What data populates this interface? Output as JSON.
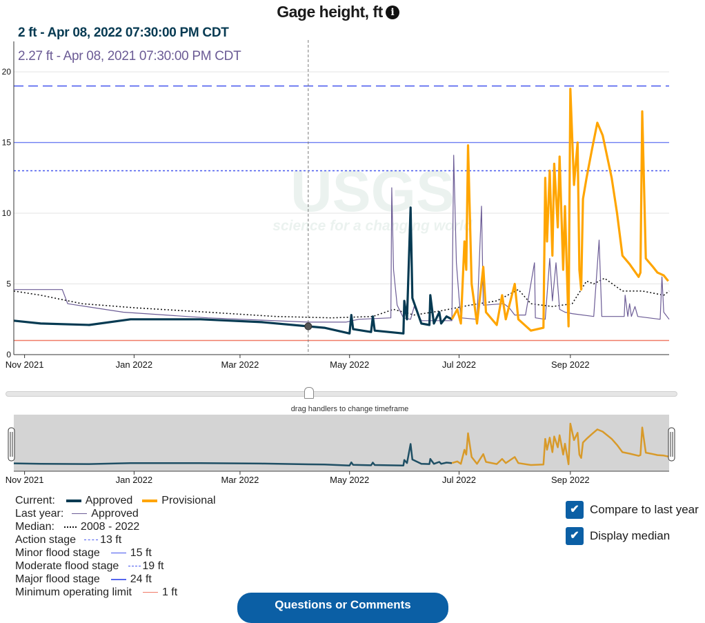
{
  "title": "Gage height, ft",
  "info_icon": "info-icon",
  "tooltip": {
    "current": "2 ft - Apr 08, 2022 07:30:00 PM CDT",
    "last_year": "2.27 ft - Apr 08, 2021 07:30:00 PM CDT"
  },
  "watermark": {
    "logo": "USGS",
    "tagline": "science for a changing world"
  },
  "brush_hint": "drag handlers to change timeframe",
  "legend": {
    "current_label": "Current:",
    "approved": "Approved",
    "provisional": "Provisional",
    "last_year_label": "Last year:",
    "last_year_approved": "Approved",
    "median_label": "Median:",
    "median_range": "2008 - 2022",
    "action_label": "Action stage",
    "action_value": "13 ft",
    "minor_label": "Minor flood stage",
    "minor_value": "15 ft",
    "moderate_label": "Moderate flood stage",
    "moderate_value": "19 ft",
    "major_label": "Major flood stage",
    "major_value": "24 ft",
    "minop_label": "Minimum operating limit",
    "minop_value": "1 ft"
  },
  "options": {
    "compare_last_year": {
      "label": "Compare to last year",
      "checked": true
    },
    "display_median": {
      "label": "Display median",
      "checked": true
    }
  },
  "button": {
    "label": "Questions or Comments"
  },
  "colors": {
    "approved": "#063a52",
    "provisional": "#ffa500",
    "provisional_brush": "#d89a2a",
    "last_year": "#6b5b95",
    "median": "#111111",
    "action": "#4455ee",
    "minor": "#6b7cf2",
    "moderate": "#4455ee",
    "minop": "#f07a66"
  },
  "chart_data": {
    "type": "line",
    "title": "Gage height, ft",
    "x_unit": "days since 2021-10-26",
    "xlim": [
      0,
      365
    ],
    "ylim": [
      0,
      22.15
    ],
    "yticks": [
      0,
      5,
      10,
      15,
      20
    ],
    "xticks": [
      {
        "day": 6,
        "label": "Nov 2021"
      },
      {
        "day": 67,
        "label": "Jan 2022"
      },
      {
        "day": 126,
        "label": "Mar 2022"
      },
      {
        "day": 187,
        "label": "May 2022"
      },
      {
        "day": 248,
        "label": "Jul 2022"
      },
      {
        "day": 310,
        "label": "Sep 2022"
      }
    ],
    "thresholds": [
      {
        "name": "action",
        "value": 13,
        "style": "dotted"
      },
      {
        "name": "minor",
        "value": 15,
        "style": "solid"
      },
      {
        "name": "moderate",
        "value": 19,
        "style": "dashed"
      },
      {
        "name": "minop",
        "value": 1,
        "style": "solid"
      }
    ],
    "hover": {
      "day": 164,
      "value": 2.0
    },
    "series": [
      {
        "name": "median",
        "points": [
          [
            0,
            4.5
          ],
          [
            15,
            4.2
          ],
          [
            38,
            3.6
          ],
          [
            69,
            3.3
          ],
          [
            108,
            3.0
          ],
          [
            146,
            2.7
          ],
          [
            177,
            2.6
          ],
          [
            200,
            2.7
          ],
          [
            211.5,
            3.2
          ],
          [
            223,
            2.8
          ],
          [
            238,
            3.1
          ],
          [
            254,
            3.5
          ],
          [
            269,
            3.8
          ],
          [
            281,
            4.6
          ],
          [
            288,
            3.6
          ],
          [
            300,
            3.4
          ],
          [
            311,
            3.6
          ],
          [
            319,
            5.2
          ],
          [
            323,
            5.0
          ],
          [
            329,
            5.4
          ],
          [
            339,
            4.5
          ],
          [
            350,
            4.5
          ],
          [
            362,
            4.2
          ],
          [
            365,
            4.5
          ]
        ]
      },
      {
        "name": "last_year",
        "points": [
          [
            0,
            4.6
          ],
          [
            27,
            4.6
          ],
          [
            30,
            3.6
          ],
          [
            61,
            3.0
          ],
          [
            108,
            2.6
          ],
          [
            164,
            2.3
          ],
          [
            185,
            2.3
          ],
          [
            192,
            2.5
          ],
          [
            210,
            2.6
          ],
          [
            210.5,
            11.8
          ],
          [
            211.5,
            6
          ],
          [
            213.5,
            3.5
          ],
          [
            217,
            2.6
          ],
          [
            221,
            2.5
          ],
          [
            223,
            3.4
          ],
          [
            227,
            2.4
          ],
          [
            234.5,
            2.4
          ],
          [
            244,
            2.4
          ],
          [
            245,
            14.1
          ],
          [
            246.5,
            6.5
          ],
          [
            248,
            4
          ],
          [
            249,
            2.6
          ],
          [
            258,
            2.5
          ],
          [
            260.5,
            10.5
          ],
          [
            261.5,
            3.5
          ],
          [
            273,
            3.6
          ],
          [
            276,
            3.3
          ],
          [
            279,
            2.8
          ],
          [
            285,
            2.8
          ],
          [
            290,
            6.5
          ],
          [
            290.5,
            2.6
          ],
          [
            296,
            2.5
          ],
          [
            298.5,
            6.8
          ],
          [
            300,
            3.8
          ],
          [
            302,
            6.5
          ],
          [
            304,
            3.2
          ],
          [
            307,
            3.0
          ],
          [
            311,
            2.9
          ],
          [
            323,
            2.7
          ],
          [
            326,
            8.1
          ],
          [
            327.5,
            2.7
          ],
          [
            340,
            2.7
          ],
          [
            340.5,
            4.2
          ],
          [
            342,
            2.7
          ],
          [
            343,
            3.6
          ],
          [
            344,
            2.7
          ],
          [
            346,
            3.4
          ],
          [
            347.5,
            2.7
          ],
          [
            360,
            2.5
          ],
          [
            361,
            5.5
          ],
          [
            362,
            3
          ],
          [
            365,
            2.5
          ]
        ]
      },
      {
        "name": "approved",
        "points": [
          [
            0,
            2.4
          ],
          [
            15,
            2.2
          ],
          [
            42,
            2.1
          ],
          [
            65,
            2.5
          ],
          [
            104,
            2.5
          ],
          [
            138,
            2.3
          ],
          [
            164,
            2.0
          ],
          [
            173,
            1.9
          ],
          [
            187,
            1.5
          ],
          [
            188,
            2.8
          ],
          [
            189,
            1.8
          ],
          [
            199,
            1.6
          ],
          [
            200,
            2.7
          ],
          [
            201,
            1.7
          ],
          [
            217,
            1.5
          ],
          [
            217.5,
            3.8
          ],
          [
            219,
            2.5
          ],
          [
            221,
            10.4
          ],
          [
            222,
            4
          ],
          [
            227,
            2.2
          ],
          [
            231.5,
            2.1
          ],
          [
            232,
            4.2
          ],
          [
            234,
            2.2
          ],
          [
            237,
            3.0
          ],
          [
            238,
            2.2
          ],
          [
            241,
            2.7
          ],
          [
            244,
            2.5
          ]
        ]
      },
      {
        "name": "provisional",
        "points": [
          [
            244,
            2.5
          ],
          [
            247,
            3.2
          ],
          [
            249,
            2.2
          ],
          [
            251,
            8
          ],
          [
            252,
            6
          ],
          [
            253,
            14.8
          ],
          [
            255,
            5
          ],
          [
            258,
            2.2
          ],
          [
            261.5,
            6.2
          ],
          [
            263,
            3
          ],
          [
            269,
            2.1
          ],
          [
            272,
            4.2
          ],
          [
            274,
            2.5
          ],
          [
            279,
            5
          ],
          [
            281,
            2.5
          ],
          [
            288,
            1.7
          ],
          [
            295,
            1.9
          ],
          [
            296,
            12.5
          ],
          [
            297,
            8
          ],
          [
            298.5,
            13
          ],
          [
            300,
            7
          ],
          [
            301,
            13.5
          ],
          [
            303,
            9
          ],
          [
            304,
            14
          ],
          [
            306,
            6
          ],
          [
            307,
            10.5
          ],
          [
            309,
            2
          ],
          [
            310,
            18.8
          ],
          [
            312,
            12
          ],
          [
            314,
            15
          ],
          [
            315,
            6
          ],
          [
            316,
            4.6
          ],
          [
            317,
            11
          ],
          [
            319,
            12.5
          ],
          [
            322,
            14.5
          ],
          [
            325,
            16.4
          ],
          [
            328,
            15.5
          ],
          [
            333,
            12.5
          ],
          [
            336,
            10
          ],
          [
            339,
            7
          ],
          [
            343,
            6.4
          ],
          [
            348,
            5.5
          ],
          [
            349,
            5.8
          ],
          [
            350,
            17.2
          ],
          [
            352,
            6.8
          ],
          [
            356,
            6.2
          ],
          [
            358.5,
            5.8
          ],
          [
            362,
            5.6
          ],
          [
            364.5,
            5.2
          ]
        ]
      }
    ]
  }
}
